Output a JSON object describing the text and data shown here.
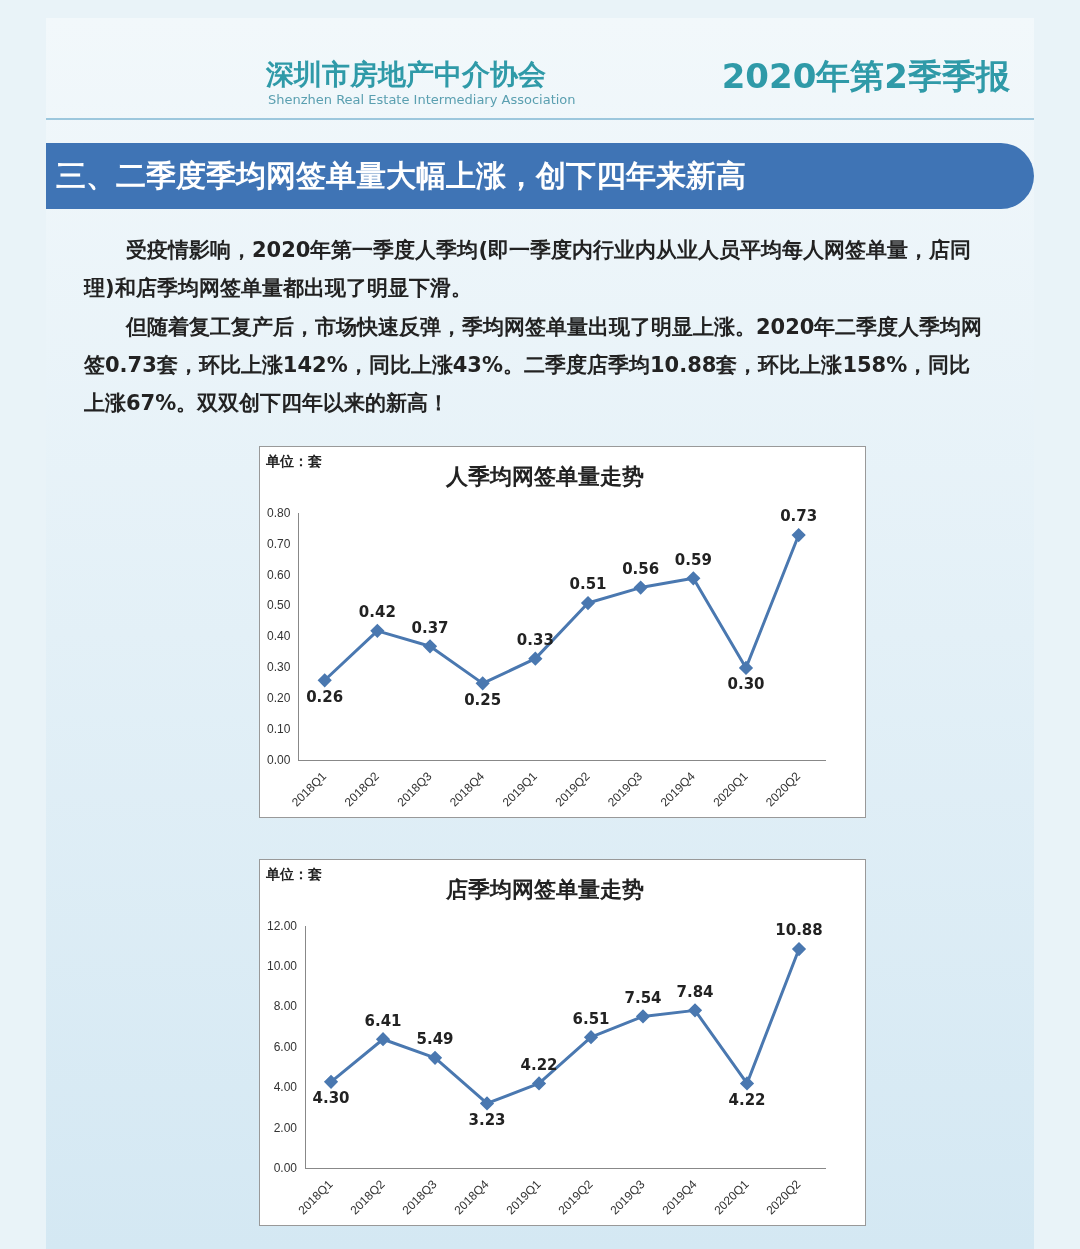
{
  "chart_data": [
    {
      "type": "other",
      "title": "2020年第2季季报",
      "subtitle": "三、二季度季均网签单量大幅上涨，创下四年来新高",
      "annotations": [
        "深圳市房地产中介协会",
        "Shenzhen Real Estate Intermediary Association",
        "受疫情影响，2020年第一季度人季均(即一季度内行业内从业人员平均每人网签单量，店同理)和店季均网签单量都出现了明显下滑。",
        "但随着复工复产后，市场快速反弹，季均网签单量出现了明显上涨。2020年二季度人季均网签0.73套，环比上涨142%，同比上涨43%。二季度店季均10.88套，环比上涨158%，同比上涨67%。双双创下四年以来的新高！"
      ]
    },
    {
      "type": "line",
      "title": "人季均网签单量走势",
      "ylabel": "单位：套",
      "categories": [
        "2018Q1",
        "2018Q2",
        "2018Q3",
        "2018Q4",
        "2019Q1",
        "2019Q2",
        "2019Q3",
        "2019Q4",
        "2020Q1",
        "2020Q2"
      ],
      "values": [
        0.26,
        0.42,
        0.37,
        0.25,
        0.33,
        0.51,
        0.56,
        0.59,
        0.3,
        0.73
      ],
      "value_labels": [
        "0.26",
        "0.42",
        "0.37",
        "0.25",
        "0.33",
        "0.51",
        "0.56",
        "0.59",
        "0.30",
        "0.73"
      ],
      "color": "#4a78b0",
      "marker": "diamond",
      "grid": false,
      "legend": false,
      "ylim": [
        0,
        0.8
      ],
      "yticks": [
        {
          "value": 0,
          "label": "0.00"
        },
        {
          "value": 0.1,
          "label": "0.10"
        },
        {
          "value": 0.2,
          "label": "0.20"
        },
        {
          "value": 0.3,
          "label": "0.30"
        },
        {
          "value": 0.4,
          "label": "0.40"
        },
        {
          "value": 0.5,
          "label": "0.50"
        },
        {
          "value": 0.6,
          "label": "0.60"
        },
        {
          "value": 0.7,
          "label": "0.70"
        },
        {
          "value": 0.8,
          "label": "0.80"
        }
      ]
    },
    {
      "type": "line",
      "title": "店季均网签单量走势",
      "ylabel": "单位：套",
      "categories": [
        "2018Q1",
        "2018Q2",
        "2018Q3",
        "2018Q4",
        "2019Q1",
        "2019Q2",
        "2019Q3",
        "2019Q4",
        "2020Q1",
        "2020Q2"
      ],
      "values": [
        4.3,
        6.41,
        5.49,
        3.23,
        4.22,
        6.51,
        7.54,
        7.84,
        4.22,
        10.88
      ],
      "value_labels": [
        "4.30",
        "6.41",
        "5.49",
        "3.23",
        "4.22",
        "6.51",
        "7.54",
        "7.84",
        "4.22",
        "10.88"
      ],
      "color": "#4a78b0",
      "marker": "diamond",
      "grid": false,
      "legend": false,
      "ylim": [
        0,
        12
      ],
      "yticks": [
        {
          "value": 0,
          "label": "0.00"
        },
        {
          "value": 2,
          "label": "2.00"
        },
        {
          "value": 4,
          "label": "4.00"
        },
        {
          "value": 6,
          "label": "6.00"
        },
        {
          "value": 8,
          "label": "8.00"
        },
        {
          "value": 10,
          "label": "10.00"
        },
        {
          "value": 12,
          "label": "12.00"
        }
      ]
    }
  ]
}
